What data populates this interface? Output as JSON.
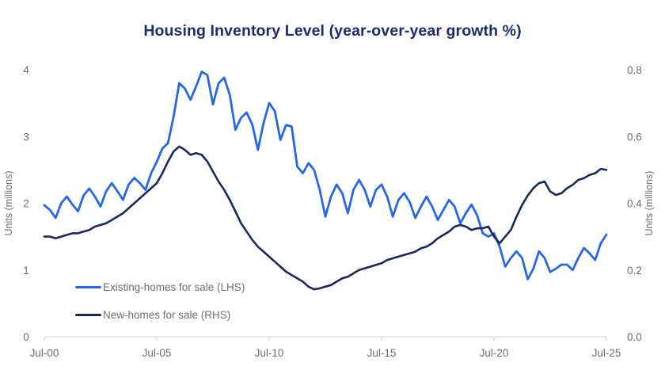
{
  "title": "Housing Inventory Level (year-over-year growth %)",
  "colors": {
    "title": "#1b2d6e",
    "existing_line": "#2767e4",
    "new_line": "#17295e",
    "axis_text": "#6e6e6e",
    "axis_line": "#d9d9d9",
    "background": "#ffffff"
  },
  "legend": {
    "position": "inside-bottom-left",
    "items": [
      {
        "label": "Existing-homes for sale (LHS)",
        "color": "#2767e4"
      },
      {
        "label": "New-homes for sale (RHS)",
        "color": "#17295e"
      }
    ]
  },
  "chart_data": {
    "type": "line",
    "title": "Housing Inventory Level (year-over-year growth %)",
    "grid": false,
    "x_axis": {
      "tick_labels": [
        "Jul-00",
        "Jul-05",
        "Jul-10",
        "Jul-15",
        "Jul-20",
        "Jul-25"
      ],
      "tick_positions": [
        2000.5,
        2005.5,
        2010.5,
        2015.5,
        2020.5,
        2025.5
      ],
      "range": [
        2000.5,
        2025.5
      ]
    },
    "left_axis": {
      "label": "Units (millions)",
      "range": [
        0,
        4
      ],
      "tick_labels": [
        "0",
        "1",
        "2",
        "3",
        "4"
      ],
      "tick_values": [
        0,
        1,
        2,
        3,
        4
      ]
    },
    "right_axis": {
      "label": "Units (millions)",
      "range": [
        0,
        0.8
      ],
      "tick_labels": [
        "0.0",
        "0.2",
        "0.4",
        "0.6",
        "0.8"
      ],
      "tick_values": [
        0,
        0.2,
        0.4,
        0.6,
        0.8
      ]
    },
    "x": [
      2000.5,
      2000.75,
      2001,
      2001.25,
      2001.5,
      2001.75,
      2002,
      2002.25,
      2002.5,
      2002.75,
      2003,
      2003.25,
      2003.5,
      2003.75,
      2004,
      2004.25,
      2004.5,
      2004.75,
      2005,
      2005.25,
      2005.5,
      2005.75,
      2006,
      2006.25,
      2006.5,
      2006.75,
      2007,
      2007.25,
      2007.5,
      2007.75,
      2008,
      2008.25,
      2008.5,
      2008.75,
      2009,
      2009.25,
      2009.5,
      2009.75,
      2010,
      2010.25,
      2010.5,
      2010.75,
      2011,
      2011.25,
      2011.5,
      2011.75,
      2012,
      2012.25,
      2012.5,
      2012.75,
      2013,
      2013.25,
      2013.5,
      2013.75,
      2014,
      2014.25,
      2014.5,
      2014.75,
      2015,
      2015.25,
      2015.5,
      2015.75,
      2016,
      2016.25,
      2016.5,
      2016.75,
      2017,
      2017.25,
      2017.5,
      2017.75,
      2018,
      2018.25,
      2018.5,
      2018.75,
      2019,
      2019.25,
      2019.5,
      2019.75,
      2020,
      2020.25,
      2020.5,
      2020.75,
      2021,
      2021.25,
      2021.5,
      2021.75,
      2022,
      2022.25,
      2022.5,
      2022.75,
      2023,
      2023.25,
      2023.5,
      2023.75,
      2024,
      2024.25,
      2024.5,
      2024.75,
      2025,
      2025.25,
      2025.5
    ],
    "series": [
      {
        "name": "Existing-homes for sale (LHS)",
        "axis": "left",
        "color": "#2767e4",
        "values": [
          1.97,
          1.9,
          1.78,
          2.0,
          2.1,
          1.98,
          1.88,
          2.12,
          2.22,
          2.1,
          1.95,
          2.18,
          2.3,
          2.18,
          2.05,
          2.28,
          2.38,
          2.3,
          2.2,
          2.45,
          2.62,
          2.82,
          2.9,
          3.3,
          3.8,
          3.72,
          3.55,
          3.75,
          3.97,
          3.92,
          3.48,
          3.8,
          3.88,
          3.62,
          3.1,
          3.28,
          3.36,
          3.18,
          2.8,
          3.2,
          3.5,
          3.38,
          2.95,
          3.17,
          3.15,
          2.55,
          2.45,
          2.6,
          2.5,
          2.2,
          1.8,
          2.1,
          2.28,
          2.15,
          1.85,
          2.2,
          2.35,
          2.2,
          1.95,
          2.2,
          2.28,
          2.1,
          1.8,
          2.05,
          2.15,
          2.02,
          1.78,
          1.95,
          2.1,
          1.95,
          1.75,
          1.9,
          2.05,
          1.95,
          1.7,
          1.85,
          1.98,
          1.82,
          1.55,
          1.5,
          1.55,
          1.35,
          1.05,
          1.18,
          1.28,
          1.18,
          0.86,
          1.02,
          1.28,
          1.18,
          0.97,
          1.02,
          1.08,
          1.08,
          1.0,
          1.18,
          1.33,
          1.25,
          1.15,
          1.4,
          1.53
        ]
      },
      {
        "name": "New-homes for sale (RHS)",
        "axis": "right",
        "color": "#17295e",
        "values": [
          0.3,
          0.3,
          0.295,
          0.3,
          0.305,
          0.31,
          0.31,
          0.315,
          0.32,
          0.33,
          0.335,
          0.34,
          0.35,
          0.36,
          0.37,
          0.385,
          0.4,
          0.415,
          0.43,
          0.445,
          0.46,
          0.49,
          0.525,
          0.555,
          0.57,
          0.56,
          0.545,
          0.55,
          0.545,
          0.525,
          0.495,
          0.465,
          0.44,
          0.41,
          0.375,
          0.34,
          0.315,
          0.29,
          0.27,
          0.255,
          0.24,
          0.225,
          0.21,
          0.195,
          0.185,
          0.175,
          0.165,
          0.15,
          0.142,
          0.145,
          0.15,
          0.155,
          0.165,
          0.175,
          0.18,
          0.19,
          0.2,
          0.205,
          0.21,
          0.215,
          0.22,
          0.23,
          0.235,
          0.24,
          0.245,
          0.25,
          0.255,
          0.265,
          0.27,
          0.28,
          0.295,
          0.305,
          0.315,
          0.33,
          0.335,
          0.33,
          0.32,
          0.325,
          0.325,
          0.33,
          0.3,
          0.28,
          0.3,
          0.32,
          0.36,
          0.395,
          0.423,
          0.445,
          0.46,
          0.465,
          0.435,
          0.425,
          0.43,
          0.445,
          0.455,
          0.47,
          0.475,
          0.485,
          0.49,
          0.503,
          0.5
        ]
      }
    ]
  }
}
